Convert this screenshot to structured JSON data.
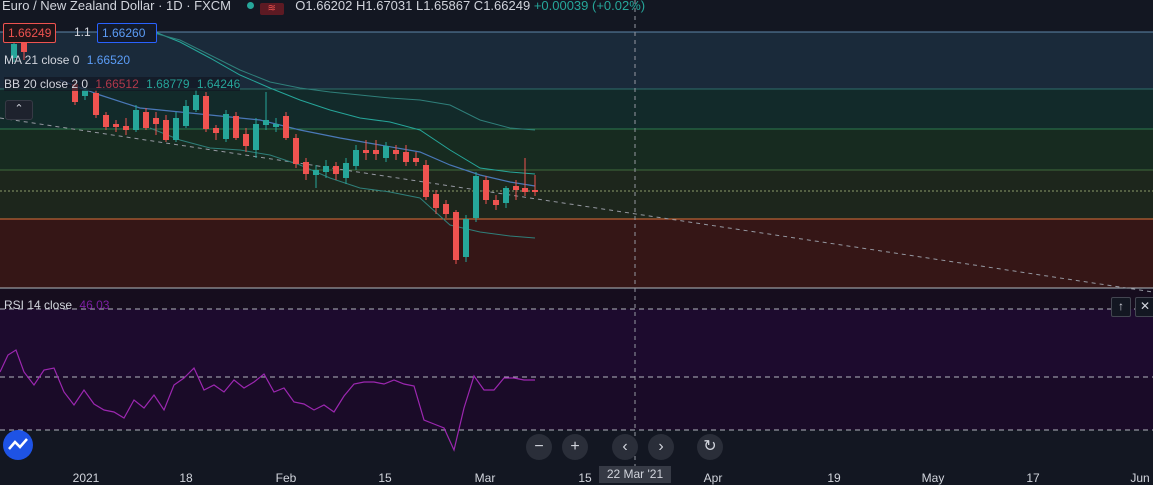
{
  "header": {
    "symbol_title": "Euro / New Zealand Dollar · 1D · FXCM",
    "ohlc": "O1.66202 H1.67031 L1.65867 C1.66249",
    "change": "+0.00039 (+0.02%)"
  },
  "trade": {
    "sell_price": "1.66249",
    "spread": "1.1",
    "buy_price": "1.66260"
  },
  "indicators": {
    "ma_label": "MA 21 close 0",
    "ma_value": "1.66520",
    "bb_label": "BB 20 close 2 0",
    "bb_values": [
      "1.66512",
      "1.68779",
      "1.64246"
    ],
    "rsi_label": "RSI 14 close",
    "rsi_value": "46.03"
  },
  "x_axis_labels": [
    "2021",
    "18",
    "Feb",
    "15",
    "Mar",
    "15",
    "Apr",
    "19",
    "May",
    "17",
    "Jun"
  ],
  "crosshair_date": "22 Mar '21",
  "colors": {
    "up": "#26a69a",
    "down": "#ef5350",
    "ma": "#5b9cf6",
    "bb": "#26a69a",
    "rsi": "#9c27b0"
  },
  "icons": [
    "collapse-up-icon",
    "maximize-pane-icon",
    "close-pane-icon",
    "zoom-out-icon",
    "zoom-in-icon",
    "scroll-left-icon",
    "scroll-right-icon",
    "reset-icon",
    "tradingview-logo-icon"
  ]
}
